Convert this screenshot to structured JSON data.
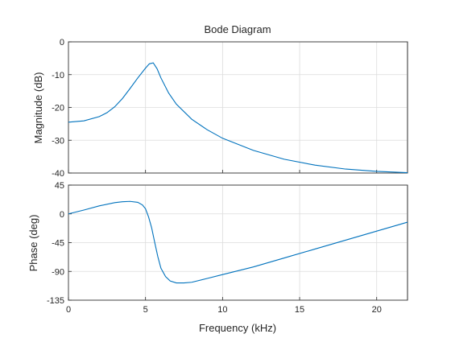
{
  "chart_data": [
    {
      "type": "line",
      "title": "Bode Diagram",
      "ylabel": "Magnitude (dB)",
      "xlim": [
        0,
        22
      ],
      "ylim": [
        -40,
        0
      ],
      "xticks": [
        0,
        5,
        10,
        15,
        20
      ],
      "yticks": [
        0,
        -10,
        -20,
        -30,
        -40
      ],
      "grid": true,
      "color": "#0072bd",
      "series": [
        {
          "x": [
            0,
            1,
            2,
            2.5,
            3,
            3.5,
            4,
            4.5,
            5,
            5.25,
            5.5,
            5.75,
            6,
            6.5,
            7,
            8,
            9,
            10,
            12,
            14,
            16,
            18,
            20,
            22
          ],
          "y": [
            -24.5,
            -24.1,
            -22.8,
            -21.6,
            -19.8,
            -17.3,
            -14.2,
            -11.0,
            -8.0,
            -6.7,
            -6.4,
            -8.2,
            -11.0,
            -15.6,
            -19.0,
            -23.6,
            -26.8,
            -29.4,
            -33.1,
            -35.8,
            -37.6,
            -38.8,
            -39.5,
            -39.9
          ]
        }
      ]
    },
    {
      "type": "line",
      "title": "",
      "xlabel": "Frequency  (kHz)",
      "ylabel": "Phase (deg)",
      "xlim": [
        0,
        22
      ],
      "ylim": [
        -135,
        45
      ],
      "xticks": [
        0,
        5,
        10,
        15,
        20
      ],
      "yticks": [
        45,
        0,
        -45,
        -90,
        -135
      ],
      "grid": true,
      "color": "#0072bd",
      "series": [
        {
          "x": [
            0,
            1,
            2,
            3,
            3.5,
            4,
            4.5,
            4.8,
            5,
            5.2,
            5.4,
            5.6,
            5.8,
            6,
            6.3,
            6.6,
            7,
            7.5,
            8,
            9,
            10,
            12,
            14,
            16,
            18,
            20,
            22
          ],
          "y": [
            0,
            6,
            12.5,
            17.5,
            19,
            19.5,
            18,
            14,
            8,
            -5,
            -22,
            -45,
            -67,
            -85,
            -98,
            -105,
            -108,
            -108,
            -107,
            -101,
            -95,
            -83,
            -69,
            -55,
            -41,
            -27,
            -13
          ]
        }
      ]
    }
  ]
}
